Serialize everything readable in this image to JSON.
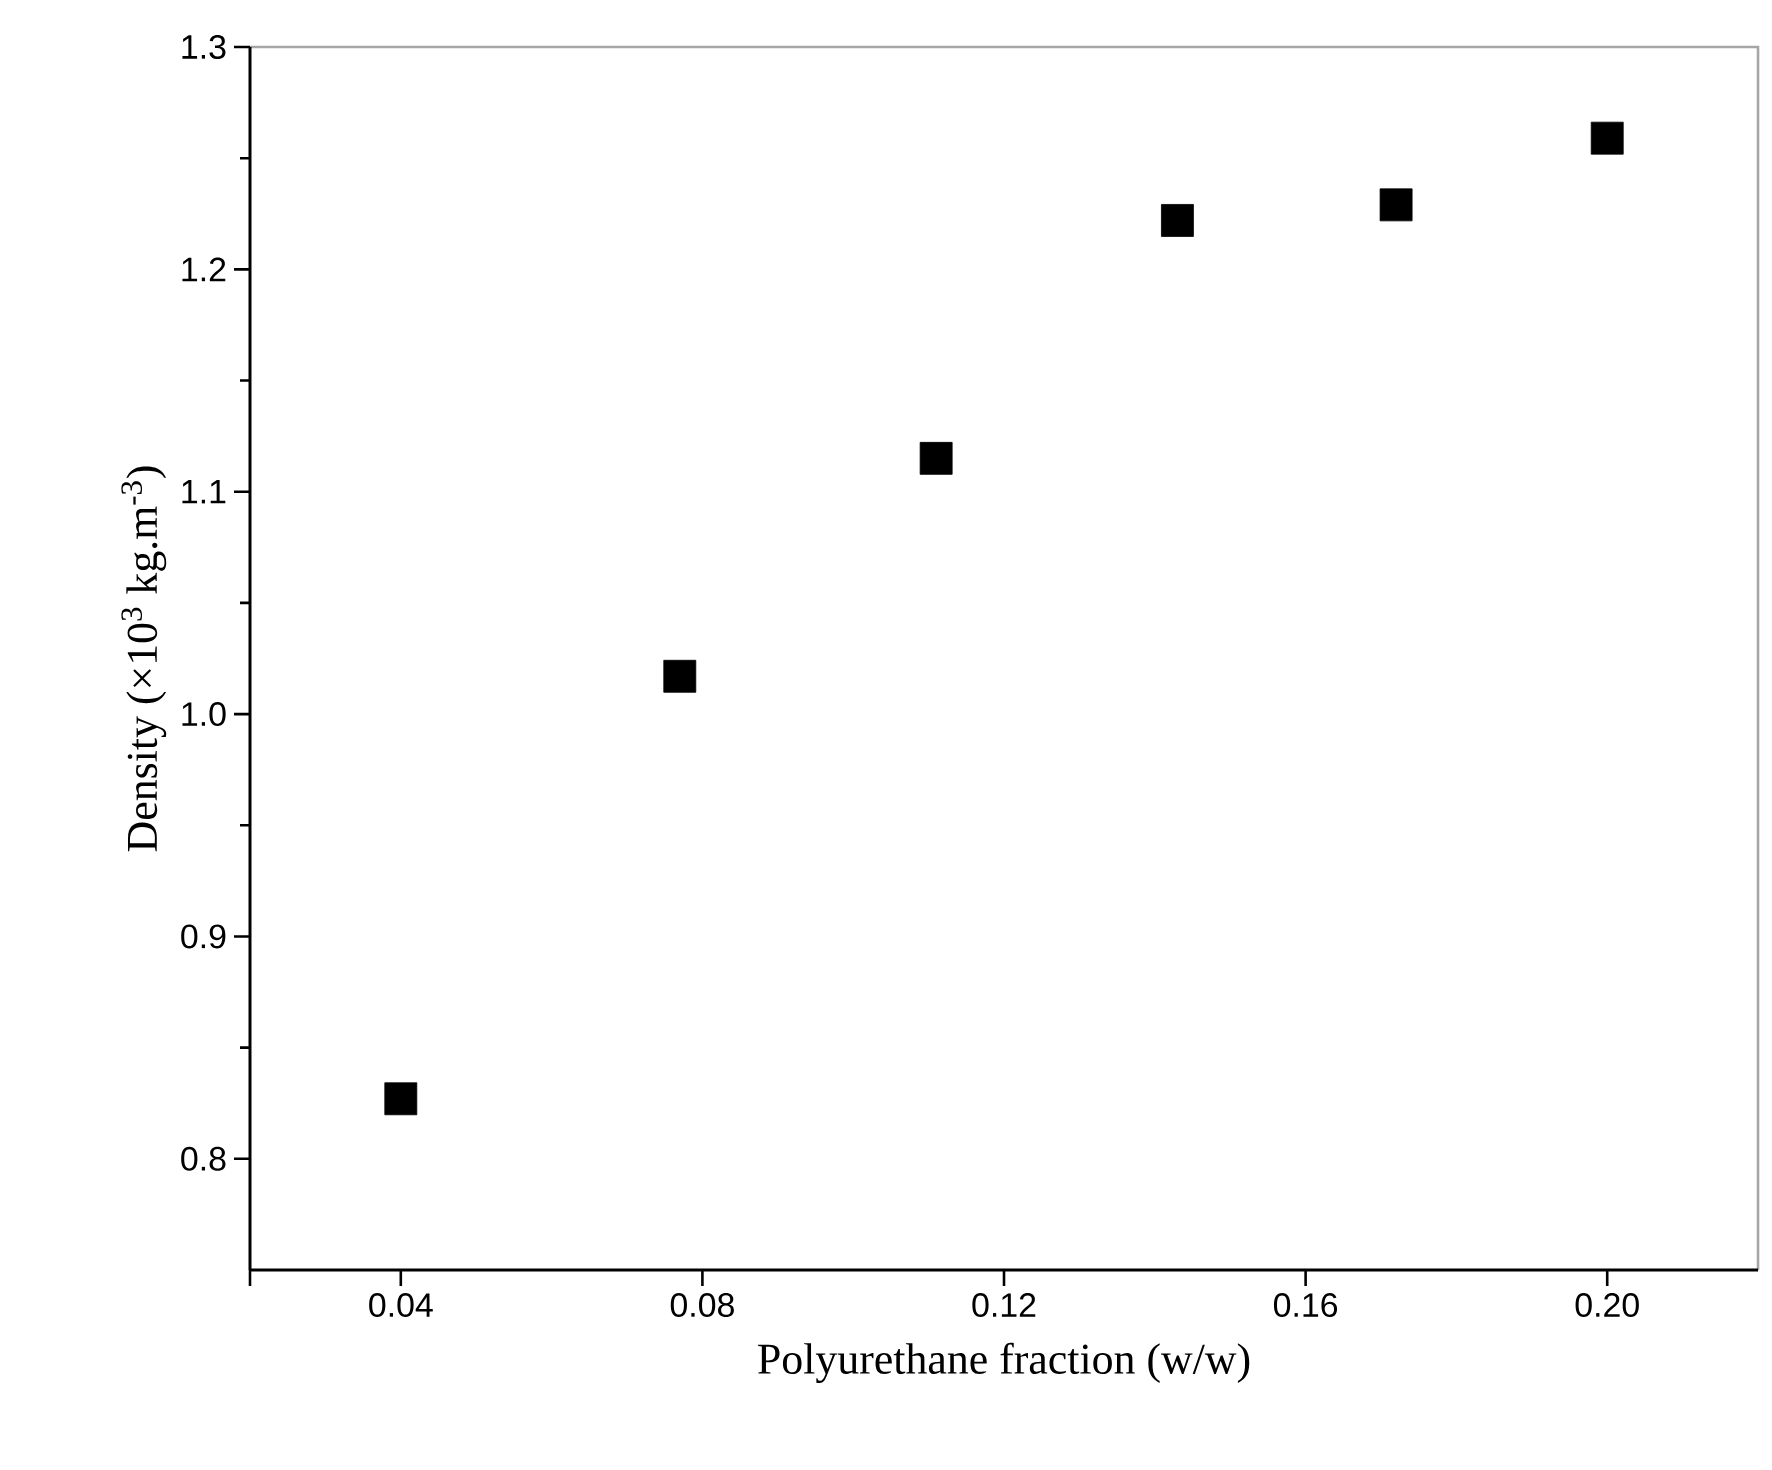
{
  "chart_data": {
    "type": "scatter",
    "xlabel": "Polyurethane fraction (w/w)",
    "ylabel": "Density (×10$^{3}$ kg.m$^{-3}$)",
    "x": [
      0.04,
      0.077,
      0.111,
      0.143,
      0.172,
      0.2
    ],
    "series": [
      {
        "color": "#000000",
        "values": [
          0.827,
          1.017,
          1.115,
          1.222,
          1.229,
          1.259
        ]
      }
    ],
    "xlim": [
      0.02,
      0.22
    ],
    "ylim": [
      0.75,
      1.3
    ],
    "xticks": [
      {
        "value": 0.02,
        "label": null
      },
      0.04,
      0.08,
      0.12,
      0.16,
      {
        "value": 0.2,
        "label": "0.20"
      }
    ],
    "yticks": [
      0.8,
      0.9,
      {
        "value": 1.0,
        "label": "1.0"
      },
      1.1,
      1.2,
      1.3
    ],
    "marker": "square",
    "grid": false
  }
}
